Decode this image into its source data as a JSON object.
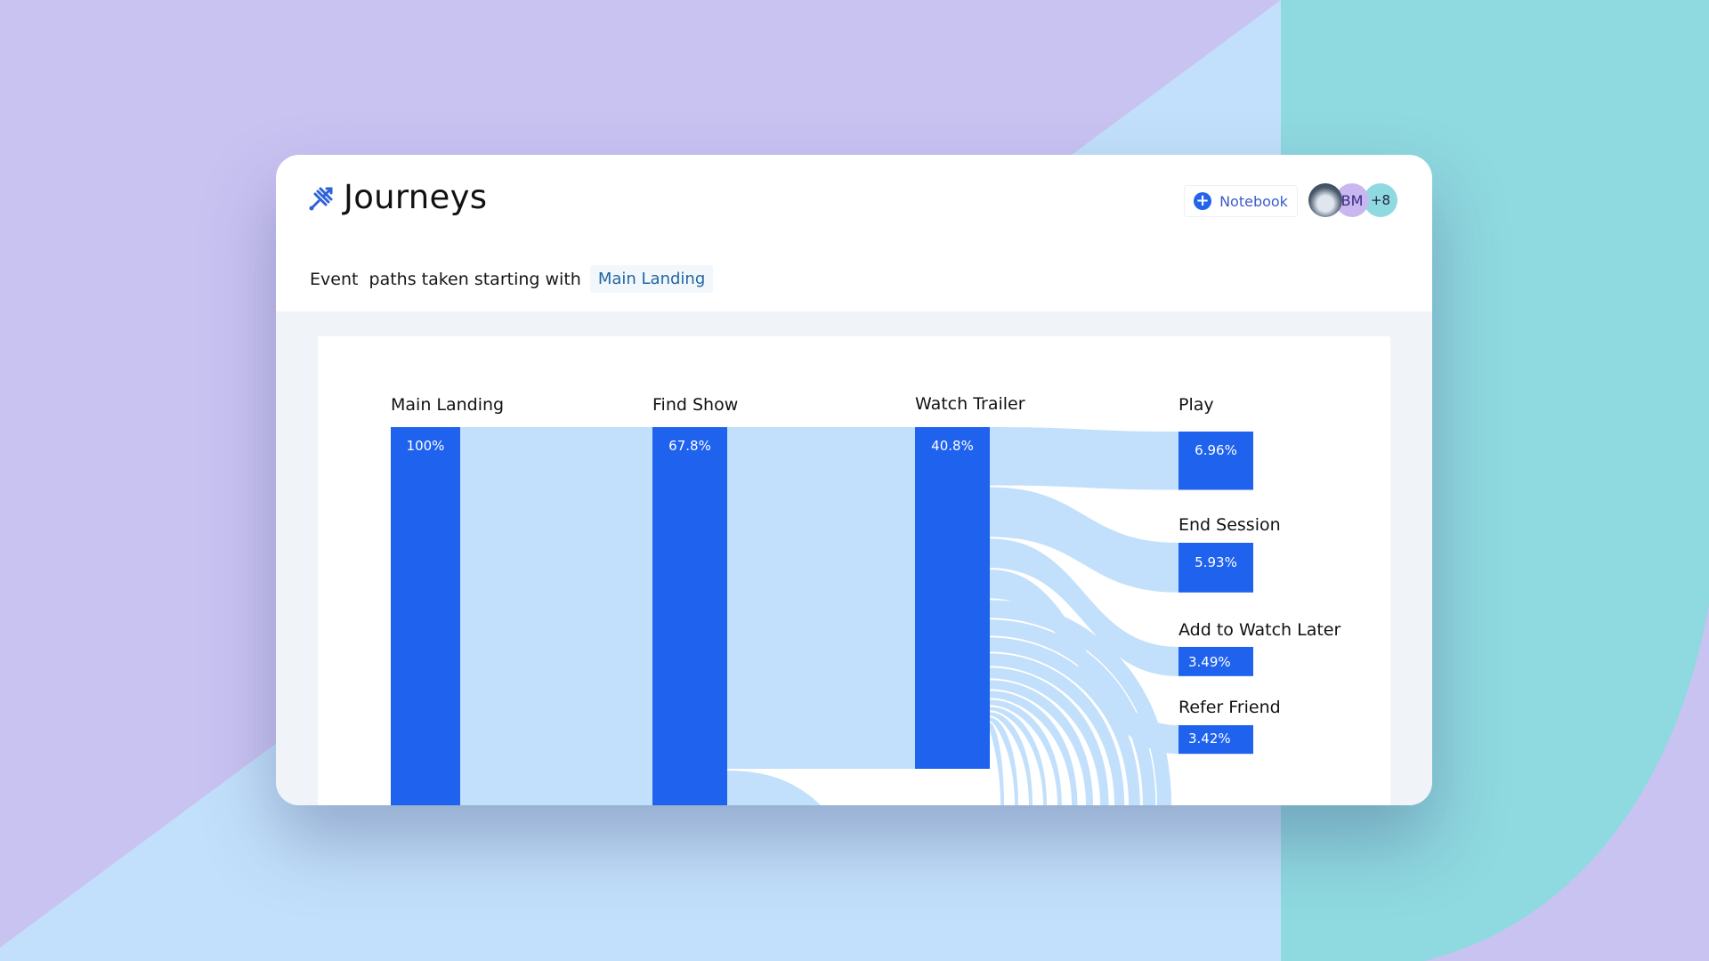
{
  "header": {
    "title": "Journeys",
    "notebook_label": "Notebook",
    "avatars": [
      {
        "type": "photo",
        "label": ""
      },
      {
        "type": "initials",
        "label": "BM"
      },
      {
        "type": "count",
        "label": "+8"
      }
    ]
  },
  "subtitle": {
    "prefix": "Event  paths taken starting with",
    "start_event": "Main Landing"
  },
  "colors": {
    "node": "#1f62ee",
    "flow": "#c2e0fb",
    "accent": "#2563eb"
  },
  "chart_data": {
    "type": "sankey",
    "columns": [
      {
        "label": "Main Landing",
        "value": 100,
        "value_label": "100%"
      },
      {
        "label": "Find Show",
        "value": 67.8,
        "value_label": "67.8%"
      },
      {
        "label": "Watch Trailer",
        "value": 40.8,
        "value_label": "40.8%"
      }
    ],
    "targets": [
      {
        "label": "Play",
        "value": 6.96,
        "value_label": "6.96%"
      },
      {
        "label": "End Session",
        "value": 5.93,
        "value_label": "5.93%"
      },
      {
        "label": "Add to Watch Later",
        "value": 3.49,
        "value_label": "3.49%"
      },
      {
        "label": "Refer Friend",
        "value": 3.42,
        "value_label": "3.42%"
      }
    ]
  }
}
